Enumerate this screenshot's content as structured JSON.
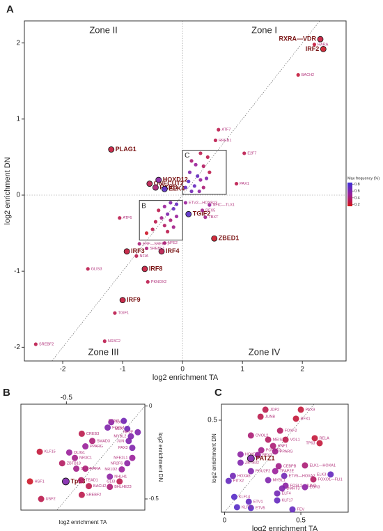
{
  "chart_data": [
    {
      "type": "scatter",
      "panel": "A",
      "x_label": "log2 enrichment TA",
      "y_label": "log2 enrichment DN",
      "xlim": [
        -2.64,
        2.73
      ],
      "ylim": [
        -2.18,
        2.29
      ],
      "xticks": [
        -2,
        -1,
        0,
        1,
        2
      ],
      "yticks": [
        -2,
        -1,
        0,
        1,
        2
      ],
      "xtick_side": "bottom",
      "ytick_side": "left",
      "zero_lines": true,
      "diagonal": true,
      "zones": [
        "Zone I",
        "Zone II",
        "Zone III",
        "Zone IV"
      ],
      "boxes": [
        {
          "label": "B",
          "xlim": [
            -0.72,
            0
          ],
          "ylim": [
            -0.59,
            -0.07
          ]
        },
        {
          "label": "C",
          "xlim": [
            0,
            0.73
          ],
          "ylim": [
            0.01,
            0.59
          ]
        }
      ],
      "colorbar": {
        "title": "Max frequency (%)",
        "lim": [
          0.15,
          0.85
        ],
        "ticks": [
          0.8,
          0.6,
          0.4,
          0.2
        ],
        "colors": [
          "#d41414",
          "#9a1f9a",
          "#3b2fd9"
        ]
      },
      "points": [
        {
          "label": "RXRA—VDR",
          "x": 2.3,
          "y": 2.05,
          "freq": 0.25,
          "bold": true
        },
        {
          "label": "RARA",
          "x": 2.2,
          "y": 1.98,
          "freq": 0.25
        },
        {
          "label": "IRF2",
          "x": 2.35,
          "y": 1.92,
          "freq": 0.2,
          "bold": true
        },
        {
          "label": "BACH2",
          "x": 1.93,
          "y": 1.58,
          "freq": 0.25
        },
        {
          "label": "ATF7",
          "x": 0.6,
          "y": 0.86,
          "freq": 0.3
        },
        {
          "label": "RREB1",
          "x": 0.55,
          "y": 0.72,
          "freq": 0.3
        },
        {
          "label": "E2F7",
          "x": 1.03,
          "y": 0.55,
          "freq": 0.3
        },
        {
          "label": "PAX1",
          "x": 0.9,
          "y": 0.15,
          "freq": 0.3
        },
        {
          "label": "PLAG1",
          "x": -1.19,
          "y": 0.6,
          "freq": 0.25,
          "bold": true
        },
        {
          "label": "ONECUT2",
          "x": -0.55,
          "y": 0.15,
          "freq": 0.3,
          "bold": true
        },
        {
          "label": "RXRB",
          "x": -0.45,
          "y": 0.1,
          "freq": 0.4,
          "bold": true
        },
        {
          "label": "HOXD12",
          "x": -0.4,
          "y": 0.2,
          "freq": 0.55,
          "bold": true
        },
        {
          "label": "ELK4",
          "x": -0.3,
          "y": 0.08,
          "freq": 0.75,
          "bold": true
        },
        {
          "label": "ATF6",
          "x": -1.05,
          "y": -0.3,
          "freq": 0.3
        },
        {
          "label": "TGIF2",
          "x": 0.1,
          "y": -0.25,
          "freq": 0.75,
          "bold": true
        },
        {
          "label": "ZBED1",
          "x": 0.53,
          "y": -0.57,
          "freq": 0.2,
          "bold": true
        },
        {
          "label": "IRF3",
          "x": -0.93,
          "y": -0.74,
          "freq": 0.25,
          "bold": true
        },
        {
          "label": "IRF4",
          "x": -0.35,
          "y": -0.74,
          "freq": 0.3,
          "bold": true
        },
        {
          "label": "IRF8",
          "x": -0.63,
          "y": -0.97,
          "freq": 0.25,
          "bold": true
        },
        {
          "label": "NFIA",
          "x": -0.77,
          "y": -0.8,
          "freq": 0.3
        },
        {
          "label": "PKNOX2",
          "x": -0.58,
          "y": -1.14,
          "freq": 0.3
        },
        {
          "label": "GLIS3",
          "x": -1.58,
          "y": -0.97,
          "freq": 0.3
        },
        {
          "label": "IRF9",
          "x": -1.0,
          "y": -1.38,
          "freq": 0.25,
          "bold": true
        },
        {
          "label": "TGIF1",
          "x": -1.13,
          "y": -1.55,
          "freq": 0.3
        },
        {
          "label": "NR3C2",
          "x": -1.3,
          "y": -1.92,
          "freq": 0.3
        },
        {
          "label": "SREBF2",
          "x": -2.45,
          "y": -1.96,
          "freq": 0.3
        },
        {
          "label": "ETV2—HOXB13",
          "x": 0.05,
          "y": -0.1,
          "freq": 0.5
        },
        {
          "label": "NFIC—TLX1",
          "x": 0.45,
          "y": -0.13,
          "freq": 0.5
        },
        {
          "label": "RFX5",
          "x": 0.33,
          "y": -0.2,
          "freq": 0.45
        },
        {
          "label": "TBXT",
          "x": 0.38,
          "y": -0.29,
          "freq": 0.45
        },
        {
          "label": "ERF—SREBF1",
          "x": -0.72,
          "y": -0.64,
          "freq": 0.4
        },
        {
          "label": "NFE2",
          "x": -0.3,
          "y": -0.63,
          "freq": 0.4
        },
        {
          "label": "SREBF1",
          "x": -0.6,
          "y": -0.7,
          "freq": 0.4
        },
        {
          "label": null,
          "x": 0.3,
          "y": 0.55,
          "freq": 0.3
        },
        {
          "label": null,
          "x": 0.42,
          "y": 0.5,
          "freq": 0.3
        },
        {
          "label": null,
          "x": 0.15,
          "y": 0.45,
          "freq": 0.4
        },
        {
          "label": null,
          "x": 0.22,
          "y": 0.4,
          "freq": 0.5
        },
        {
          "label": null,
          "x": 0.35,
          "y": 0.38,
          "freq": 0.35
        },
        {
          "label": null,
          "x": 0.45,
          "y": 0.3,
          "freq": 0.3
        },
        {
          "label": null,
          "x": 0.12,
          "y": 0.3,
          "freq": 0.6
        },
        {
          "label": null,
          "x": 0.25,
          "y": 0.25,
          "freq": 0.7
        },
        {
          "label": null,
          "x": 0.3,
          "y": 0.2,
          "freq": 0.5
        },
        {
          "label": null,
          "x": 0.1,
          "y": 0.18,
          "freq": 0.75
        },
        {
          "label": null,
          "x": 0.2,
          "y": 0.12,
          "freq": 0.7
        },
        {
          "label": null,
          "x": 0.35,
          "y": 0.1,
          "freq": 0.4
        },
        {
          "label": null,
          "x": 0.15,
          "y": 0.05,
          "freq": 0.65
        },
        {
          "label": null,
          "x": 0.28,
          "y": 0.05,
          "freq": 0.55
        },
        {
          "label": null,
          "x": 0.05,
          "y": 0.1,
          "freq": 0.7
        },
        {
          "label": null,
          "x": 0.4,
          "y": 0.22,
          "freq": 0.6
        },
        {
          "label": null,
          "x": -0.2,
          "y": -0.1,
          "freq": 0.6
        },
        {
          "label": null,
          "x": -0.3,
          "y": -0.15,
          "freq": 0.5
        },
        {
          "label": null,
          "x": -0.15,
          "y": -0.18,
          "freq": 0.7
        },
        {
          "label": null,
          "x": -0.4,
          "y": -0.2,
          "freq": 0.3
        },
        {
          "label": null,
          "x": -0.25,
          "y": -0.25,
          "freq": 0.6
        },
        {
          "label": null,
          "x": -0.1,
          "y": -0.28,
          "freq": 0.5
        },
        {
          "label": null,
          "x": -0.35,
          "y": -0.3,
          "freq": 0.45
        },
        {
          "label": null,
          "x": -0.2,
          "y": -0.33,
          "freq": 0.4
        },
        {
          "label": null,
          "x": -0.45,
          "y": -0.35,
          "freq": 0.3
        },
        {
          "label": null,
          "x": -0.3,
          "y": -0.4,
          "freq": 0.35
        },
        {
          "label": null,
          "x": -0.15,
          "y": -0.42,
          "freq": 0.45
        },
        {
          "label": null,
          "x": -0.5,
          "y": -0.45,
          "freq": 0.3
        },
        {
          "label": null,
          "x": -0.25,
          "y": -0.48,
          "freq": 0.3
        },
        {
          "label": null,
          "x": -0.6,
          "y": -0.5,
          "freq": 0.2
        },
        {
          "label": null,
          "x": -0.1,
          "y": -0.12,
          "freq": 0.7
        }
      ]
    },
    {
      "type": "scatter",
      "panel": "B",
      "x_label": "log2 enrichment TA",
      "y_label": "log2 enrichment DN",
      "xlim": [
        -0.79,
        0.0
      ],
      "ylim": [
        -0.56,
        0.01
      ],
      "xticks": [
        -0.5
      ],
      "yticks": [
        0,
        -0.5
      ],
      "xtick_side": "top",
      "ytick_side": "right",
      "zero_lines": false,
      "diagonal": true,
      "points": [
        {
          "label": "RXRB",
          "x": -0.214,
          "y": -0.087,
          "freq": 0.55
        },
        {
          "label": "FOXO",
          "x": -0.134,
          "y": -0.08,
          "freq": 0.65
        },
        {
          "label": "FOXE1",
          "x": -0.237,
          "y": -0.116,
          "freq": 0.6
        },
        {
          "label": "MLX",
          "x": -0.112,
          "y": -0.123,
          "freq": 0.65
        },
        {
          "label": "NR2F",
          "x": -0.045,
          "y": -0.141,
          "freq": 0.6
        },
        {
          "label": "CREB3",
          "x": -0.402,
          "y": -0.149,
          "freq": 0.3
        },
        {
          "label": "MYBL2",
          "x": -0.089,
          "y": -0.163,
          "freq": 0.6
        },
        {
          "label": "SMAD3",
          "x": -0.335,
          "y": -0.188,
          "freq": 0.4
        },
        {
          "label": "JUN",
          "x": -0.103,
          "y": -0.188,
          "freq": 0.6
        },
        {
          "label": "PPARG",
          "x": -0.379,
          "y": -0.217,
          "freq": 0.5
        },
        {
          "label": "PAX3",
          "x": -0.08,
          "y": -0.225,
          "freq": 0.6
        },
        {
          "label": "KLF15",
          "x": -0.67,
          "y": -0.246,
          "freq": 0.25
        },
        {
          "label": "OLIG1",
          "x": -0.482,
          "y": -0.25,
          "freq": 0.5
        },
        {
          "label": "NR3C1",
          "x": -0.446,
          "y": -0.279,
          "freq": 0.45
        },
        {
          "label": "NFE2L1",
          "x": -0.08,
          "y": -0.279,
          "freq": 0.5
        },
        {
          "label": "ZBTB18",
          "x": -0.527,
          "y": -0.308,
          "freq": 0.35
        },
        {
          "label": "NR2F6",
          "x": -0.112,
          "y": -0.308,
          "freq": 0.55
        },
        {
          "label": "DUX4",
          "x": -0.437,
          "y": -0.337,
          "freq": 0.45
        },
        {
          "label": "RARA",
          "x": -0.379,
          "y": -0.337,
          "freq": 0.4
        },
        {
          "label": "NR1D2",
          "x": -0.147,
          "y": -0.341,
          "freq": 0.5
        },
        {
          "label": "NHLH1",
          "x": -0.223,
          "y": -0.38,
          "freq": 0.55
        },
        {
          "label": "GLI3",
          "x": -0.161,
          "y": -0.406,
          "freq": 0.3
        },
        {
          "label": "HSF1",
          "x": -0.732,
          "y": -0.406,
          "freq": 0.2
        },
        {
          "label": "Tp53",
          "x": -0.504,
          "y": -0.406,
          "freq": 0.6,
          "bold": true
        },
        {
          "label": "TEAD1",
          "x": -0.406,
          "y": -0.399,
          "freq": 0.35
        },
        {
          "label": "BACH2",
          "x": -0.357,
          "y": -0.431,
          "freq": 0.3
        },
        {
          "label": "BHLHE23",
          "x": -0.223,
          "y": -0.435,
          "freq": 0.4
        },
        {
          "label": "USF2",
          "x": -0.661,
          "y": -0.5,
          "freq": 0.3
        },
        {
          "label": "SREBF2",
          "x": -0.402,
          "y": -0.478,
          "freq": 0.3
        }
      ]
    },
    {
      "type": "scatter",
      "panel": "C",
      "x_label": "log2 enrichment TA",
      "y_label": "log2 enrichment DN",
      "xlim": [
        -0.02,
        0.81
      ],
      "ylim": [
        0.0,
        0.587
      ],
      "xticks": [
        0,
        0.5
      ],
      "yticks": [
        0.5
      ],
      "xtick_side": "bottom",
      "ytick_side": "left",
      "zero_lines": false,
      "diagonal": true,
      "points": [
        {
          "label": "JDP2",
          "x": 0.268,
          "y": 0.557,
          "freq": 0.3
        },
        {
          "label": "PAX9",
          "x": 0.5,
          "y": 0.557,
          "freq": 0.25
        },
        {
          "label": "JUNB",
          "x": 0.236,
          "y": 0.519,
          "freq": 0.3
        },
        {
          "label": "RFX1",
          "x": 0.468,
          "y": 0.508,
          "freq": 0.25
        },
        {
          "label": "FOXF2",
          "x": 0.364,
          "y": 0.443,
          "freq": 0.35
        },
        {
          "label": "OVOL2",
          "x": 0.173,
          "y": 0.417,
          "freq": 0.4
        },
        {
          "label": "MEIS3",
          "x": 0.286,
          "y": 0.394,
          "freq": 0.35
        },
        {
          "label": "VOL1",
          "x": 0.4,
          "y": 0.394,
          "freq": 0.3
        },
        {
          "label": "RELA",
          "x": 0.591,
          "y": 0.402,
          "freq": 0.25
        },
        {
          "label": "HNF1",
          "x": 0.318,
          "y": 0.36,
          "freq": 0.4
        },
        {
          "label": "TP63",
          "x": 0.623,
          "y": 0.375,
          "freq": 0.25
        },
        {
          "label": "POU4F2",
          "x": 0.241,
          "y": 0.337,
          "freq": 0.45
        },
        {
          "label": "PPARG",
          "x": 0.332,
          "y": 0.33,
          "freq": 0.45
        },
        {
          "label": "HOXD10",
          "x": 0.105,
          "y": 0.314,
          "freq": 0.55
        },
        {
          "label": "RFX2",
          "x": 0.218,
          "y": 0.311,
          "freq": 0.5
        },
        {
          "label": "PATZ1",
          "x": 0.173,
          "y": 0.292,
          "freq": 0.6,
          "bold": true
        },
        {
          "label": "ZBTB32",
          "x": 0.105,
          "y": 0.269,
          "freq": 0.6
        },
        {
          "label": "POU2F2",
          "x": 0.173,
          "y": 0.223,
          "freq": 0.6
        },
        {
          "label": "TFAP2E",
          "x": 0.332,
          "y": 0.223,
          "freq": 0.5
        },
        {
          "label": "CEBPB",
          "x": 0.355,
          "y": 0.25,
          "freq": 0.45
        },
        {
          "label": "ELK1—HOXA1",
          "x": 0.527,
          "y": 0.254,
          "freq": 0.4
        },
        {
          "label": "ETV5—HOXA2",
          "x": 0.391,
          "y": 0.197,
          "freq": 0.65
        },
        {
          "label": "ELK3",
          "x": 0.695,
          "y": 0.205,
          "freq": 0.7
        },
        {
          "label": "FOXO1—FLI1",
          "x": 0.582,
          "y": 0.178,
          "freq": 0.35
        },
        {
          "label": "MYBL1",
          "x": 0.286,
          "y": 0.174,
          "freq": 0.6
        },
        {
          "label": "FOSL2—JUND",
          "x": 0.4,
          "y": 0.144,
          "freq": 0.55
        },
        {
          "label": "EGR3",
          "x": 0.527,
          "y": 0.136,
          "freq": 0.55
        },
        {
          "label": "DMRT3",
          "x": 0.377,
          "y": 0.129,
          "freq": 0.6
        },
        {
          "label": "ELF4",
          "x": 0.345,
          "y": 0.102,
          "freq": 0.65
        },
        {
          "label": "KLF17",
          "x": 0.345,
          "y": 0.064,
          "freq": 0.7
        },
        {
          "label": "ETV1",
          "x": 0.159,
          "y": 0.057,
          "freq": 0.7
        },
        {
          "label": "ETV5",
          "x": 0.173,
          "y": 0.023,
          "freq": 0.75
        },
        {
          "label": "FEV",
          "x": 0.445,
          "y": 0.015,
          "freq": 0.7
        },
        {
          "label": "KLF14",
          "x": 0.064,
          "y": 0.083,
          "freq": 0.75
        },
        {
          "label": "KLF15",
          "x": 0.082,
          "y": 0.027,
          "freq": 0.75
        },
        {
          "label": "HOXA5",
          "x": 0.055,
          "y": 0.197,
          "freq": 0.65
        },
        {
          "label": "PITX2",
          "x": 0.027,
          "y": 0.17,
          "freq": 0.7
        }
      ]
    }
  ]
}
